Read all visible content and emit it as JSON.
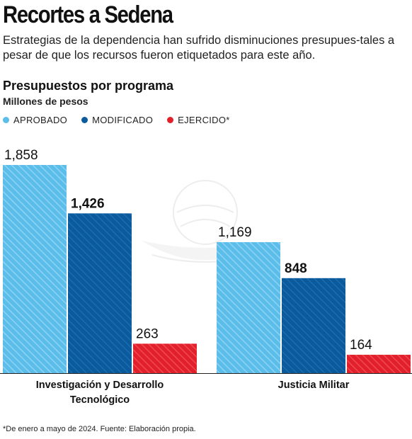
{
  "header": {
    "title": "Recortes a Sedena",
    "subtitle": "Estrategias de la dependencia han sufrido disminuciones presupues-tales a pesar de que los recursos fueron etiquetados para este año."
  },
  "chart_heading": "Presupuestos por programa",
  "chart_unit": "Millones de pesos",
  "legend": [
    {
      "label": "APROBADO",
      "color": "#5bbdea"
    },
    {
      "label": "MODIFICADO",
      "color": "#0a5a9c"
    },
    {
      "label": "EJERCIDO*",
      "color": "#e2202b"
    }
  ],
  "chart_data": {
    "type": "bar",
    "title": "Presupuestos por programa",
    "ylabel": "Millones de pesos",
    "categories": [
      "Investigación y Desarrollo Tecnológico",
      "Justicia Militar"
    ],
    "category_lines": [
      [
        "Investigación y Desarrollo",
        "Tecnológico"
      ],
      [
        "Justicia Militar"
      ]
    ],
    "series": [
      {
        "name": "APROBADO",
        "values": [
          1858,
          1169
        ],
        "labels": [
          "1,858",
          "1,169"
        ],
        "color": "#5bbdea"
      },
      {
        "name": "MODIFICADO",
        "values": [
          1426,
          848
        ],
        "labels": [
          "1,426",
          "848"
        ],
        "color": "#0a5a9c"
      },
      {
        "name": "EJERCIDO*",
        "values": [
          263,
          164
        ],
        "labels": [
          "263",
          "164"
        ],
        "color": "#e2202b"
      }
    ],
    "ylim": [
      0,
      1858
    ],
    "legend_position": "top-left",
    "grid": false
  },
  "footnote": "*De enero a mayo de 2024. Fuente: Elaboración propia."
}
